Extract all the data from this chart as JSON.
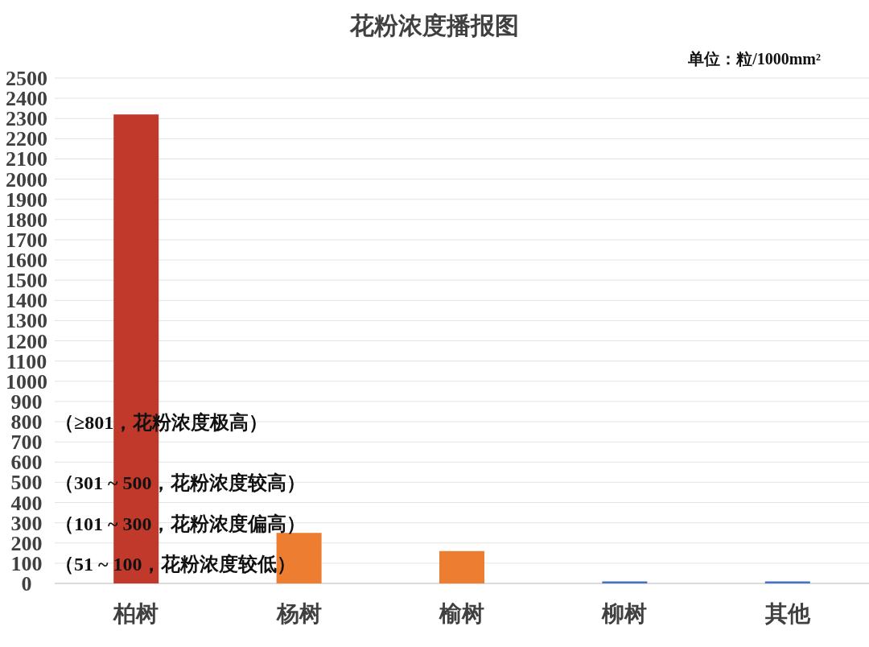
{
  "chart_data": {
    "type": "bar",
    "title": "花粉浓度播报图",
    "subtitle": "单位：粒/1000mm²",
    "categories": [
      "柏树",
      "杨树",
      "榆树",
      "柳树",
      "其他"
    ],
    "values": [
      2320,
      250,
      160,
      10,
      10
    ],
    "colors": [
      "#c0392b",
      "#ed7d31",
      "#ed7d31",
      "#4472c4",
      "#4472c4"
    ],
    "ylim": [
      0,
      2500
    ],
    "yticks": [
      0,
      100,
      200,
      300,
      400,
      500,
      600,
      700,
      800,
      900,
      1000,
      1100,
      1200,
      1300,
      1400,
      1500,
      1600,
      1700,
      1800,
      1900,
      2000,
      2100,
      2200,
      2300,
      2400,
      2500
    ],
    "grid": "y",
    "annotations": [
      "（≥801，花粉浓度极高）",
      "（301 ~ 500，花粉浓度较高）",
      "（101 ~ 300，花粉浓度偏高）",
      "（51 ~ 100，花粉浓度较低）"
    ]
  }
}
